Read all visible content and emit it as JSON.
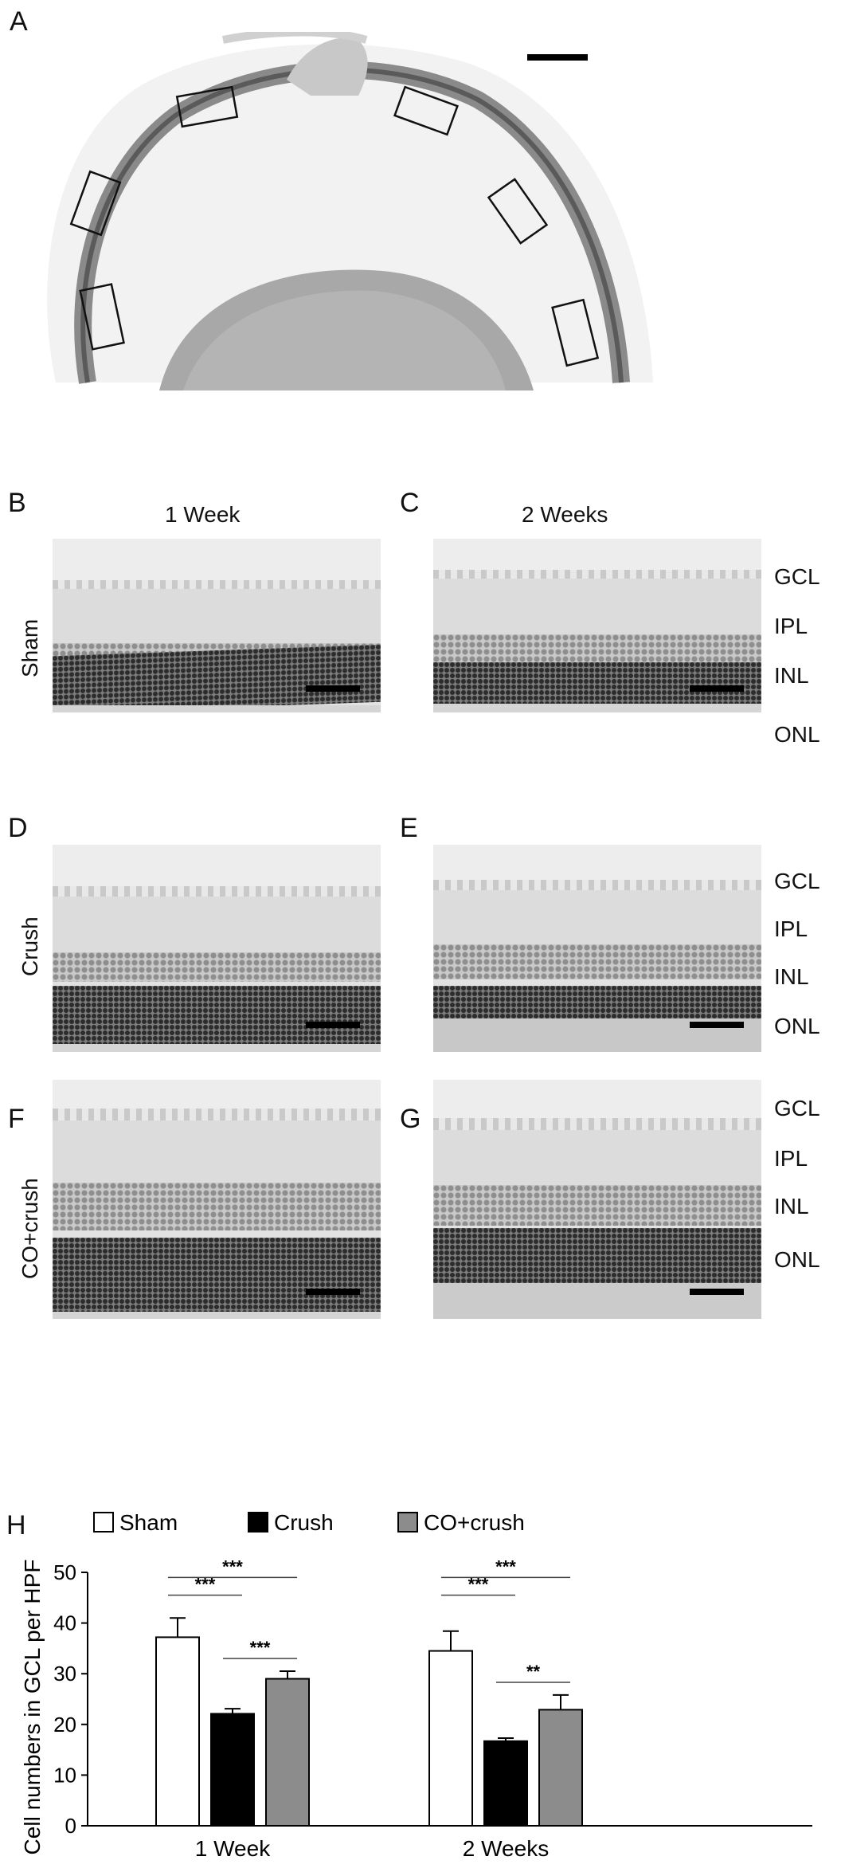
{
  "panels": {
    "A": "A",
    "B": "B",
    "C": "C",
    "D": "D",
    "E": "E",
    "F": "F",
    "G": "G",
    "H": "H"
  },
  "columns": [
    "1 Week",
    "2 Weeks"
  ],
  "rows": [
    "Sham",
    "Crush",
    "CO+crush"
  ],
  "layers": [
    "GCL",
    "IPL",
    "INL",
    "ONL"
  ],
  "chart_data": {
    "type": "bar",
    "categories": [
      "1 Week",
      "2 Weeks"
    ],
    "series": [
      {
        "name": "Sham",
        "values": [
          37.2,
          34.5
        ],
        "errors": [
          3.8,
          3.9
        ],
        "color": "#ffffff"
      },
      {
        "name": "Crush",
        "values": [
          22.1,
          16.7
        ],
        "errors": [
          1.0,
          0.6
        ],
        "color": "#000000"
      },
      {
        "name": "CO+crush",
        "values": [
          29.0,
          22.9
        ],
        "errors": [
          1.5,
          2.9
        ],
        "color": "#8c8c8c"
      }
    ],
    "ylabel": "Cell numbers in GCL per HPF",
    "ylim": [
      0,
      50
    ],
    "yticks": [
      0,
      10,
      20,
      30,
      40,
      50
    ],
    "legend": "top",
    "significance": [
      {
        "group": "1 Week",
        "pair": [
          "Sham",
          "Crush"
        ],
        "label": "***"
      },
      {
        "group": "1 Week",
        "pair": [
          "Sham",
          "CO+crush"
        ],
        "label": "***"
      },
      {
        "group": "1 Week",
        "pair": [
          "Crush",
          "CO+crush"
        ],
        "label": "***"
      },
      {
        "group": "2 Weeks",
        "pair": [
          "Sham",
          "Crush"
        ],
        "label": "***"
      },
      {
        "group": "2 Weeks",
        "pair": [
          "Sham",
          "CO+crush"
        ],
        "label": "***"
      },
      {
        "group": "2 Weeks",
        "pair": [
          "Crush",
          "CO+crush"
        ],
        "label": "**"
      }
    ]
  }
}
